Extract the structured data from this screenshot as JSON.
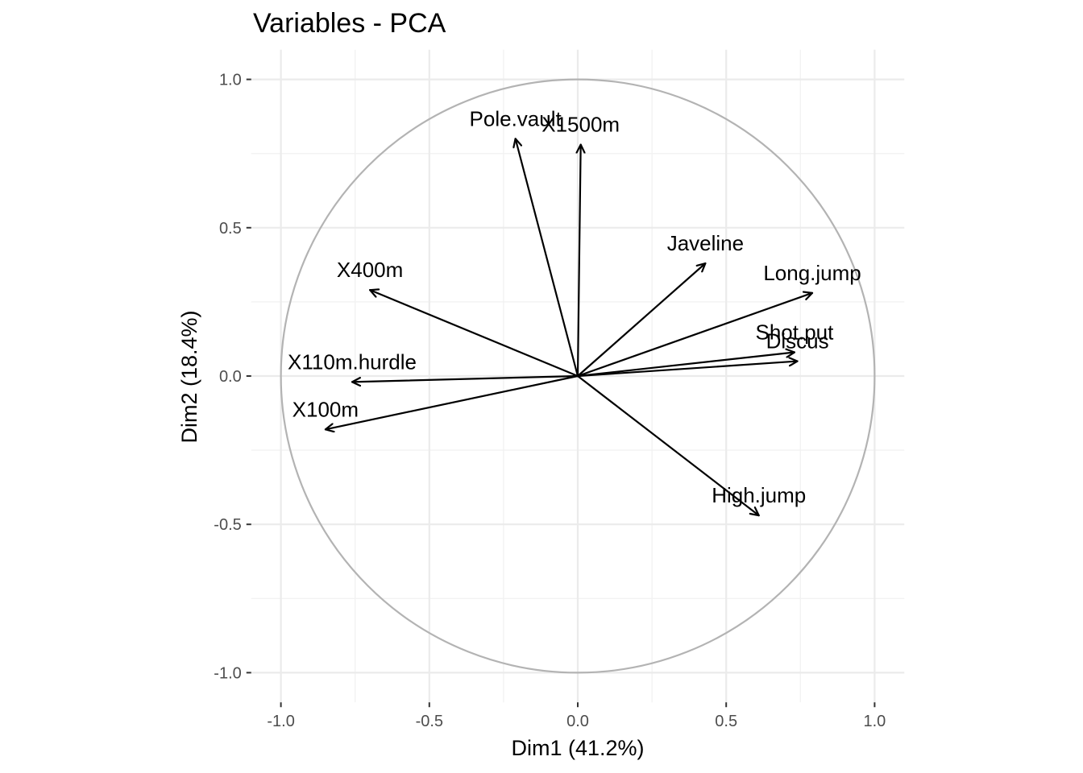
{
  "chart_data": {
    "type": "scatter",
    "title": "Variables - PCA",
    "xlabel": "Dim1 (41.2%)",
    "ylabel": "Dim2 (18.4%)",
    "xlim": [
      -1.1,
      1.1
    ],
    "ylim": [
      -1.1,
      1.1
    ],
    "xticks": [
      -1.0,
      -0.5,
      0.0,
      0.5,
      1.0
    ],
    "yticks": [
      -1.0,
      -0.5,
      0.0,
      0.5,
      1.0
    ],
    "xtick_labels": [
      "-1.0",
      "-0.5",
      "0.0",
      "0.5",
      "1.0"
    ],
    "ytick_labels": [
      "-1.0",
      "-0.5",
      "0.0",
      "0.5",
      "1.0"
    ],
    "grid": true,
    "correlation_circle": true,
    "variables": [
      {
        "name": "X100m",
        "x": -0.85,
        "y": -0.18
      },
      {
        "name": "Long.jump",
        "x": 0.79,
        "y": 0.28
      },
      {
        "name": "Shot.put",
        "x": 0.73,
        "y": 0.08
      },
      {
        "name": "High.jump",
        "x": 0.61,
        "y": -0.47
      },
      {
        "name": "X400m",
        "x": -0.7,
        "y": 0.29
      },
      {
        "name": "X110m.hurdle",
        "x": -0.76,
        "y": -0.02
      },
      {
        "name": "Discus",
        "x": 0.74,
        "y": 0.05
      },
      {
        "name": "Pole.vault",
        "x": -0.21,
        "y": 0.8
      },
      {
        "name": "Javeline",
        "x": 0.43,
        "y": 0.38
      },
      {
        "name": "X1500m",
        "x": 0.01,
        "y": 0.78
      }
    ],
    "colors": {
      "arrow": "#000000",
      "circle": "#b3b3b3",
      "grid": "#ebebeb",
      "tick_text": "#4d4d4d"
    }
  }
}
